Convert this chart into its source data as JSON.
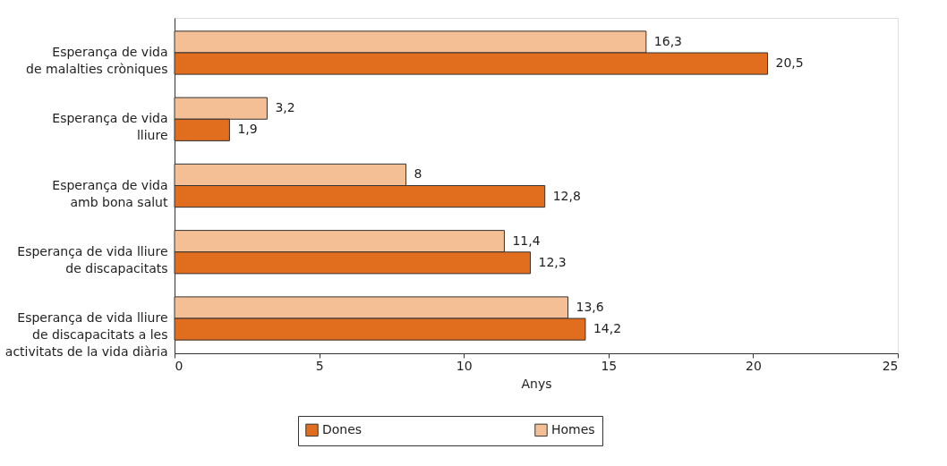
{
  "chart_data": {
    "type": "bar",
    "orientation": "horizontal",
    "xlabel": "Anys",
    "categories": [
      "Esperança de vida\nde malalties cròniques",
      "Esperança de vida\nlliure",
      "Esperança de vida\namb bona salut",
      "Esperança de vida lliure\nde discapacitats",
      "Esperança de vida lliure\nde discapacitats a les\nactivitats de la vida diària"
    ],
    "series": [
      {
        "name": "Homes",
        "color": "#f4bf95",
        "values": [
          16.3,
          3.2,
          8,
          11.4,
          13.6
        ],
        "value_labels": [
          "16,3",
          "3,2",
          "8",
          "11,4",
          "13,6"
        ]
      },
      {
        "name": "Dones",
        "color": "#e06e1e",
        "values": [
          20.5,
          1.9,
          12.8,
          12.3,
          14.2
        ],
        "value_labels": [
          "20,5",
          "1,9",
          "12,8",
          "12,3",
          "14,2"
        ]
      }
    ],
    "xlim": [
      0,
      25
    ],
    "xticks": [
      0,
      5,
      10,
      15,
      20,
      25
    ],
    "grid": false,
    "legend": "bottom"
  }
}
